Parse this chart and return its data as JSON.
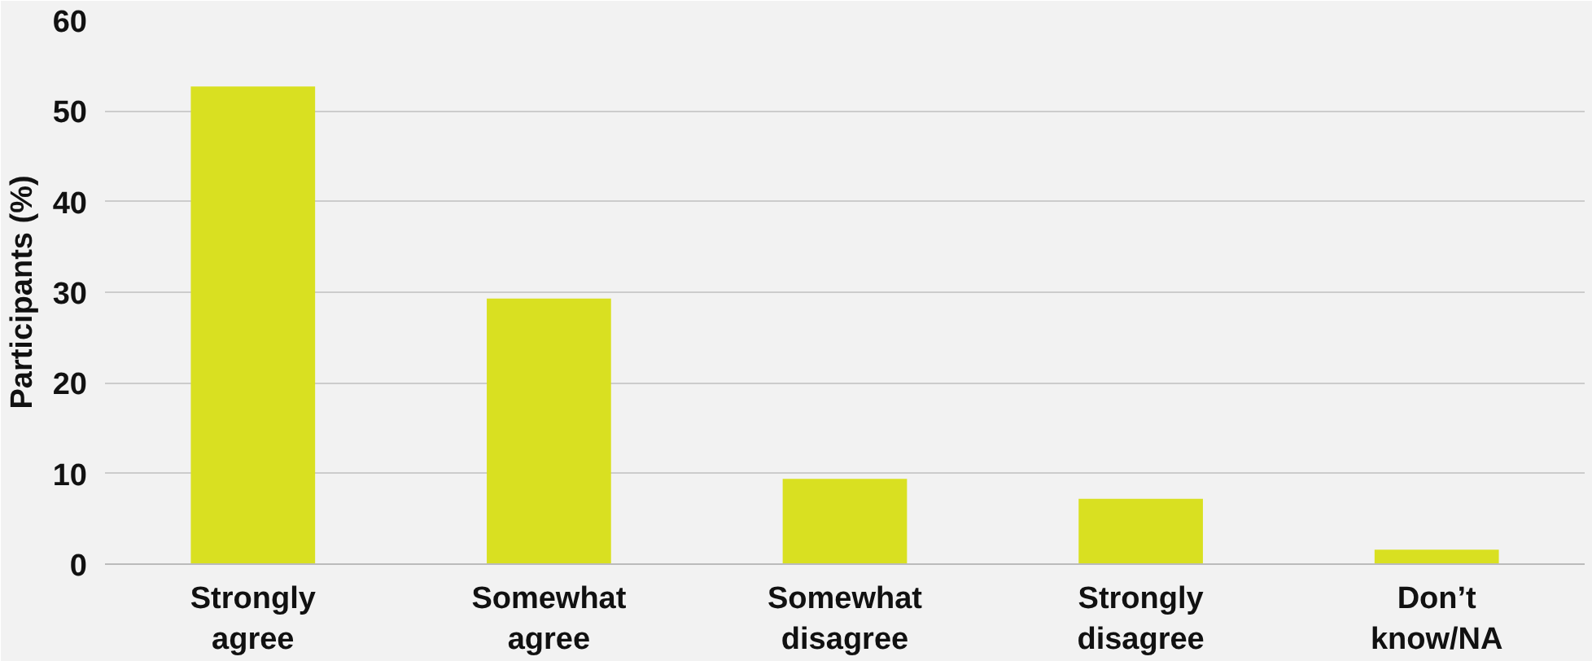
{
  "chart_data": {
    "type": "bar",
    "ylabel": "Participants (%)",
    "categories": [
      "Strongly agree",
      "Somewhat agree",
      "Somewhat disagree",
      "Strongly disagree",
      "Don’t know/NA"
    ],
    "values": [
      52.7,
      29.3,
      9.4,
      7.2,
      1.6
    ],
    "color": "#d9e021",
    "ylim": [
      0,
      60
    ],
    "yticks": [
      0,
      10,
      20,
      30,
      40,
      50,
      60
    ],
    "grid": "y"
  }
}
